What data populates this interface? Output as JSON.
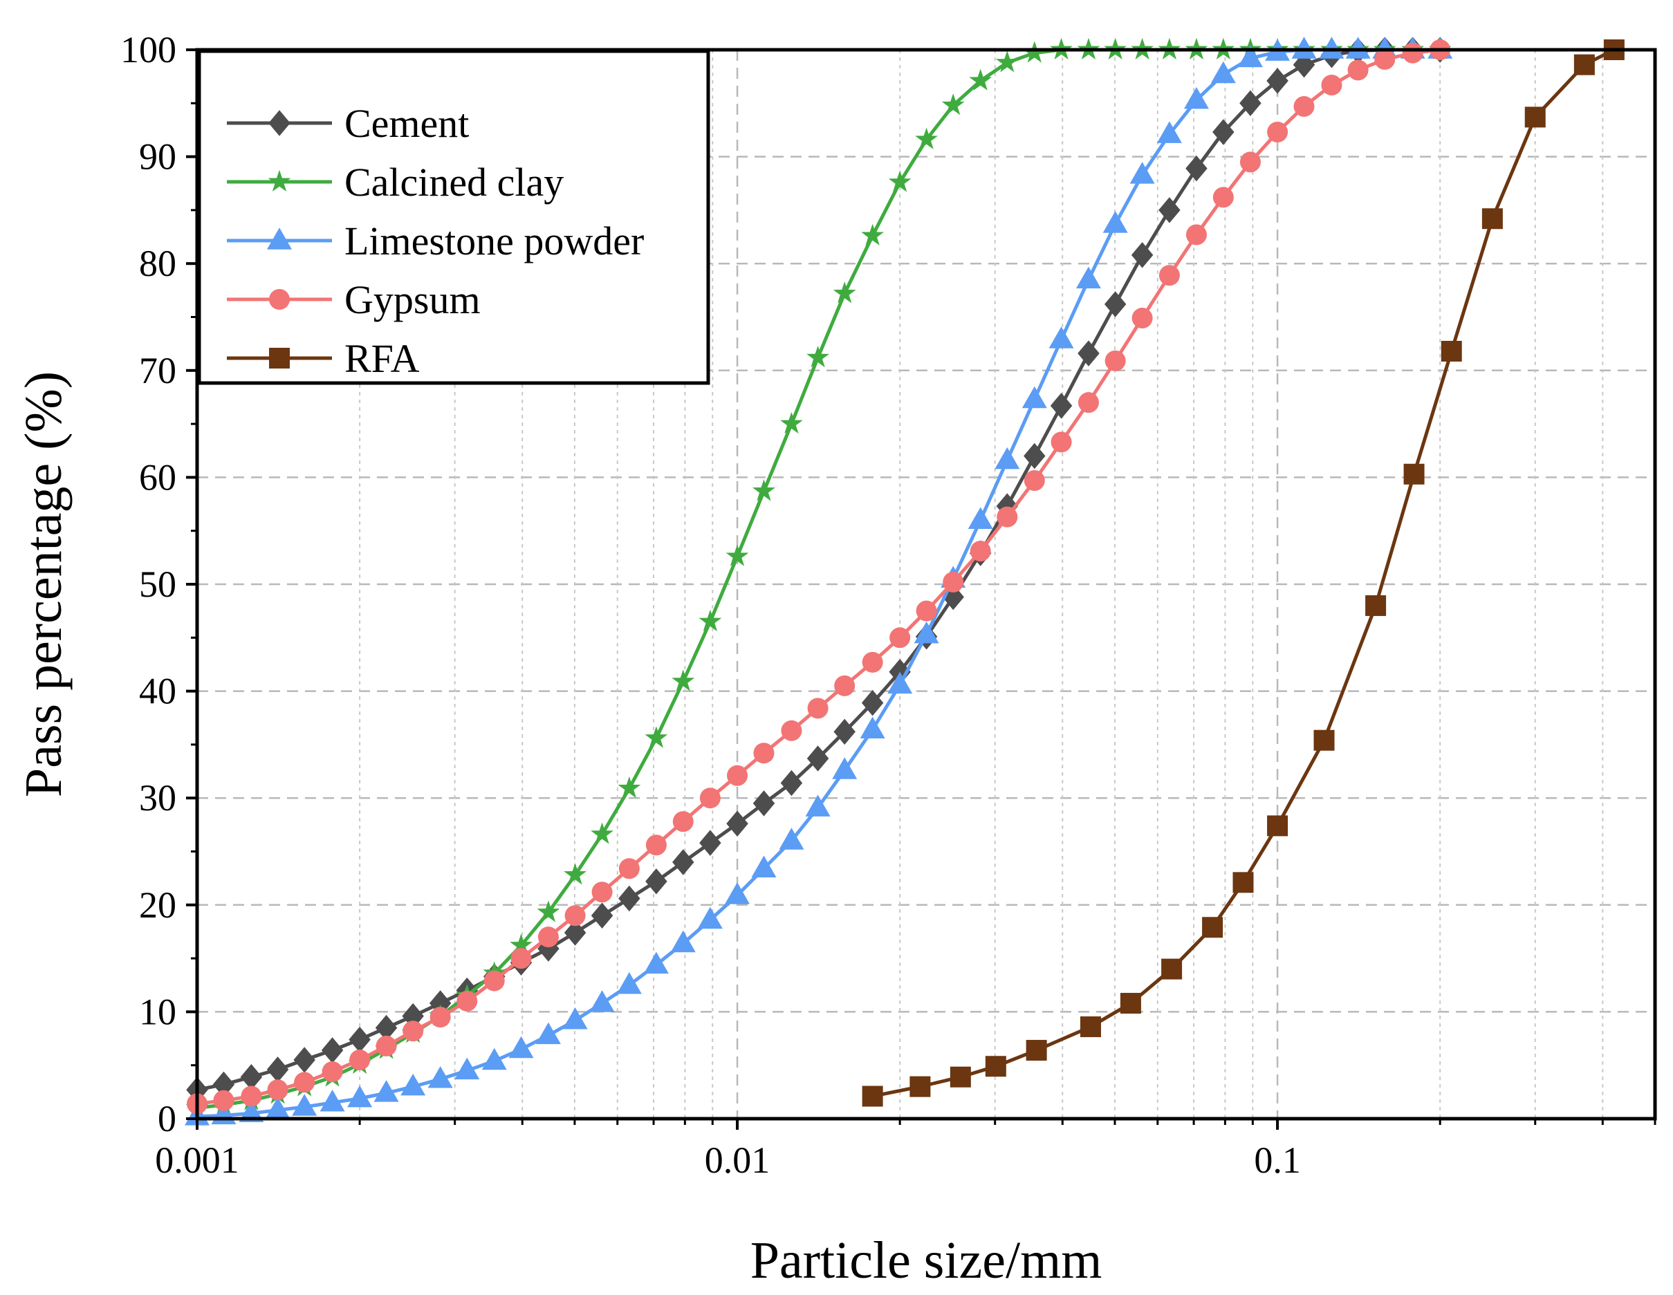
{
  "chart_data": {
    "type": "line",
    "title": "",
    "xlabel": "Particle size/mm",
    "ylabel": "Pass percentage (%)",
    "xscale": "log",
    "xlim": [
      0.001,
      0.5
    ],
    "ylim": [
      0,
      100
    ],
    "xticks": [
      {
        "value": 0.001,
        "label": "0.001"
      },
      {
        "value": 0.01,
        "label": "0.01"
      },
      {
        "value": 0.1,
        "label": "0.1"
      }
    ],
    "yticks": [
      {
        "value": 0,
        "label": "0"
      },
      {
        "value": 10,
        "label": "10"
      },
      {
        "value": 20,
        "label": "20"
      },
      {
        "value": 30,
        "label": "30"
      },
      {
        "value": 40,
        "label": "40"
      },
      {
        "value": 50,
        "label": "50"
      },
      {
        "value": 60,
        "label": "60"
      },
      {
        "value": 70,
        "label": "70"
      },
      {
        "value": 80,
        "label": "80"
      },
      {
        "value": 90,
        "label": "90"
      },
      {
        "value": 100,
        "label": "100"
      }
    ],
    "grid": true,
    "legend_position": "top-left",
    "series": [
      {
        "name": "Cement",
        "color": "#4d4d4d",
        "marker": "diamond",
        "x": [
          0.001,
          0.00112,
          0.00126,
          0.00141,
          0.00158,
          0.00178,
          0.002,
          0.00224,
          0.00251,
          0.00282,
          0.00316,
          0.00355,
          0.00398,
          0.00447,
          0.00501,
          0.00562,
          0.00631,
          0.00708,
          0.00794,
          0.00891,
          0.01,
          0.0112,
          0.0126,
          0.0141,
          0.0158,
          0.0178,
          0.02,
          0.0224,
          0.0251,
          0.0282,
          0.0316,
          0.0355,
          0.0398,
          0.0447,
          0.0501,
          0.0562,
          0.0631,
          0.0708,
          0.0794,
          0.0891,
          0.1,
          0.112,
          0.126,
          0.141,
          0.158,
          0.178,
          0.2
        ],
        "y": [
          2.7,
          3.2,
          3.9,
          4.6,
          5.5,
          6.4,
          7.4,
          8.5,
          9.6,
          10.8,
          12.0,
          13.3,
          14.6,
          15.9,
          17.4,
          19.0,
          20.6,
          22.2,
          24.0,
          25.8,
          27.6,
          29.5,
          31.4,
          33.7,
          36.2,
          38.9,
          41.8,
          45.1,
          48.8,
          52.9,
          57.3,
          62.0,
          66.7,
          71.6,
          76.2,
          80.8,
          85.0,
          88.9,
          92.3,
          95.0,
          97.1,
          98.6,
          99.5,
          99.9,
          100,
          100,
          100
        ]
      },
      {
        "name": "Calcined clay",
        "color": "#3fab3f",
        "marker": "star",
        "x": [
          0.001,
          0.00112,
          0.00126,
          0.00141,
          0.00158,
          0.00178,
          0.002,
          0.00224,
          0.00251,
          0.00282,
          0.00316,
          0.00355,
          0.00398,
          0.00447,
          0.00501,
          0.00562,
          0.00631,
          0.00708,
          0.00794,
          0.00891,
          0.01,
          0.0112,
          0.0126,
          0.0141,
          0.0158,
          0.0178,
          0.02,
          0.0224,
          0.0251,
          0.0282,
          0.0316,
          0.0355,
          0.0398,
          0.0447,
          0.0501,
          0.0562,
          0.0631,
          0.0708,
          0.0794,
          0.0891,
          0.1,
          0.112,
          0.126,
          0.141,
          0.158,
          0.178,
          0.2
        ],
        "y": [
          1.0,
          1.3,
          1.7,
          2.3,
          3.0,
          3.9,
          5.1,
          6.5,
          8.0,
          9.6,
          11.5,
          13.6,
          16.2,
          19.3,
          22.8,
          26.6,
          30.9,
          35.6,
          40.9,
          46.5,
          52.6,
          58.7,
          65.0,
          71.2,
          77.2,
          82.6,
          87.6,
          91.6,
          94.8,
          97.1,
          98.8,
          99.7,
          100,
          100,
          100,
          100,
          100,
          100,
          100,
          100,
          100,
          100,
          100,
          100,
          100,
          100,
          100
        ]
      },
      {
        "name": "Limestone powder",
        "color": "#5b9cf5",
        "marker": "triangle",
        "x": [
          0.001,
          0.00112,
          0.00126,
          0.00141,
          0.00158,
          0.00178,
          0.002,
          0.00224,
          0.00251,
          0.00282,
          0.00316,
          0.00355,
          0.00398,
          0.00447,
          0.00501,
          0.00562,
          0.00631,
          0.00708,
          0.00794,
          0.00891,
          0.01,
          0.0112,
          0.0126,
          0.0141,
          0.0158,
          0.0178,
          0.02,
          0.0224,
          0.0251,
          0.0282,
          0.0316,
          0.0355,
          0.0398,
          0.0447,
          0.0501,
          0.0562,
          0.0631,
          0.0708,
          0.0794,
          0.0891,
          0.1,
          0.112,
          0.126,
          0.141,
          0.158,
          0.178,
          0.2
        ],
        "y": [
          0.2,
          0.3,
          0.5,
          0.8,
          1.1,
          1.5,
          1.9,
          2.4,
          3.0,
          3.7,
          4.5,
          5.4,
          6.5,
          7.8,
          9.2,
          10.8,
          12.5,
          14.4,
          16.4,
          18.6,
          20.9,
          23.4,
          26.0,
          29.1,
          32.6,
          36.4,
          40.6,
          45.3,
          50.5,
          56.0,
          61.6,
          67.3,
          72.9,
          78.5,
          83.7,
          88.3,
          92.1,
          95.3,
          97.7,
          99.2,
          99.8,
          100,
          100,
          100,
          100,
          100,
          100
        ]
      },
      {
        "name": "Gypsum",
        "color": "#f27474",
        "marker": "circle",
        "x": [
          0.001,
          0.00112,
          0.00126,
          0.00141,
          0.00158,
          0.00178,
          0.002,
          0.00224,
          0.00251,
          0.00282,
          0.00316,
          0.00355,
          0.00398,
          0.00447,
          0.00501,
          0.00562,
          0.00631,
          0.00708,
          0.00794,
          0.00891,
          0.01,
          0.0112,
          0.0126,
          0.0141,
          0.0158,
          0.0178,
          0.02,
          0.0224,
          0.0251,
          0.0282,
          0.0316,
          0.0355,
          0.0398,
          0.0447,
          0.0501,
          0.0562,
          0.0631,
          0.0708,
          0.0794,
          0.0891,
          0.1,
          0.112,
          0.126,
          0.141,
          0.158,
          0.178,
          0.2
        ],
        "y": [
          1.4,
          1.7,
          2.1,
          2.7,
          3.4,
          4.4,
          5.5,
          6.8,
          8.2,
          9.5,
          11.0,
          12.9,
          15.0,
          17.0,
          19.0,
          21.2,
          23.4,
          25.6,
          27.8,
          30.0,
          32.1,
          34.2,
          36.3,
          38.4,
          40.5,
          42.7,
          45.0,
          47.5,
          50.2,
          53.1,
          56.3,
          59.7,
          63.3,
          67.0,
          70.9,
          74.9,
          78.9,
          82.7,
          86.2,
          89.5,
          92.3,
          94.7,
          96.7,
          98.1,
          99.1,
          99.7,
          100
        ]
      },
      {
        "name": "RFA",
        "color": "#6b3610",
        "marker": "square",
        "x": [
          0.0178,
          0.0218,
          0.0259,
          0.0301,
          0.0358,
          0.0451,
          0.0535,
          0.0637,
          0.0758,
          0.0864,
          0.1,
          0.122,
          0.152,
          0.179,
          0.21,
          0.25,
          0.3,
          0.37,
          0.42
        ],
        "y": [
          2.1,
          3.0,
          3.9,
          4.9,
          6.4,
          8.6,
          10.8,
          14.0,
          17.9,
          22.1,
          27.4,
          35.4,
          48.0,
          60.3,
          71.8,
          84.2,
          93.7,
          98.6,
          100
        ]
      }
    ]
  }
}
